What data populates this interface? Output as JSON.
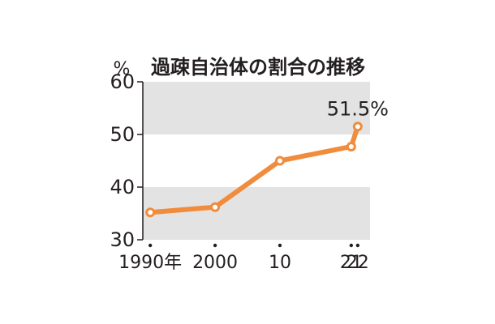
{
  "chart_data": {
    "type": "line",
    "title": "過疎自治体の割合の推移",
    "ylabel": "%",
    "x": [
      1990,
      2000,
      2010,
      2021,
      2022
    ],
    "xticklabels": [
      "1990年",
      "2000",
      "10",
      "21",
      "22"
    ],
    "yticks": [
      "30",
      "40",
      "50",
      "60"
    ],
    "ylim": [
      30,
      60
    ],
    "series": [
      {
        "values": [
          35.2,
          36.2,
          45.0,
          47.7,
          51.5
        ]
      }
    ],
    "annotations": [
      {
        "x": 2022,
        "text": "51.5%"
      }
    ],
    "band_color": "#e3e3e3",
    "line_color": "#f08c3c"
  }
}
